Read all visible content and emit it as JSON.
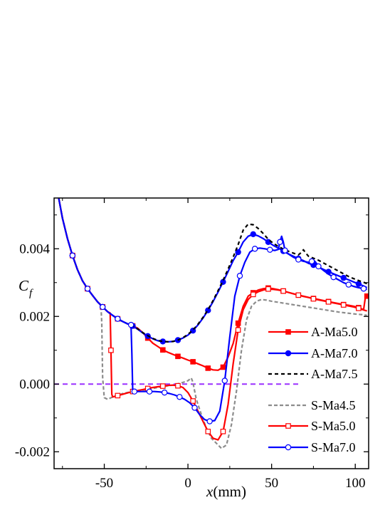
{
  "chart_data": {
    "type": "line",
    "title": "",
    "xlabel_italic": "x",
    "xlabel_unit": "(mm)",
    "ylabel_main": "C",
    "ylabel_sub": "f",
    "xlim": [
      -80,
      108
    ],
    "ylim": [
      -0.0025,
      0.0055
    ],
    "xticks": [
      -50,
      0,
      50,
      100
    ],
    "xtick_labels": [
      "-50",
      "0",
      "50",
      "100"
    ],
    "yticks": [
      -0.002,
      0.0,
      0.002,
      0.004
    ],
    "ytick_labels": [
      "-0.002",
      "0.000",
      "0.002",
      "0.004"
    ],
    "legend_position": "right",
    "reference_line": {
      "y": 0.0,
      "x_end": 68,
      "color": "#9b30ff",
      "style": "dashed"
    },
    "series": [
      {
        "name": "A-Ma5.0",
        "color": "#ff0000",
        "dash": "",
        "marker": "square",
        "filled": true,
        "width": 2.2,
        "marker_every": 3,
        "x": [
          -78,
          -75,
          -72,
          -69,
          -66,
          -63,
          -60,
          -57,
          -54,
          -51,
          -48,
          -45,
          -42,
          -39,
          -36,
          -33,
          -30,
          -27,
          -24,
          -21,
          -18,
          -15,
          -12,
          -9,
          -6,
          -3,
          0,
          3,
          6,
          9,
          12,
          15,
          18,
          21,
          24,
          27,
          30,
          33,
          36,
          39,
          42,
          45,
          48,
          51,
          54,
          57,
          60,
          63,
          66,
          69,
          72,
          75,
          78,
          81,
          84,
          87,
          90,
          93,
          96,
          99,
          102,
          105,
          106,
          107
        ],
        "y": [
          0.0057,
          0.0049,
          0.0043,
          0.0038,
          0.00338,
          0.00305,
          0.00282,
          0.00262,
          0.00243,
          0.00228,
          0.00214,
          0.00203,
          0.00193,
          0.00185,
          0.00178,
          0.00172,
          0.00165,
          0.00152,
          0.00136,
          0.00121,
          0.00111,
          0.00101,
          0.00094,
          0.00088,
          0.00082,
          0.00077,
          0.00071,
          0.00066,
          0.0006,
          0.00054,
          0.00047,
          0.00042,
          0.00041,
          0.0005,
          0.0008,
          0.0012,
          0.0018,
          0.0023,
          0.0026,
          0.0027,
          0.00278,
          0.00282,
          0.00284,
          0.00282,
          0.00279,
          0.00275,
          0.00271,
          0.00267,
          0.00263,
          0.0026,
          0.00256,
          0.00253,
          0.0025,
          0.00247,
          0.00244,
          0.00241,
          0.00238,
          0.00235,
          0.00233,
          0.0023,
          0.00226,
          0.0022,
          0.00255,
          0.0026
        ]
      },
      {
        "name": "A-Ma7.0",
        "color": "#0000ff",
        "dash": "",
        "marker": "circle",
        "filled": true,
        "width": 2.2,
        "marker_every": 3,
        "x": [
          -78,
          -75,
          -72,
          -69,
          -66,
          -63,
          -60,
          -57,
          -54,
          -51,
          -48,
          -45,
          -42,
          -39,
          -36,
          -33,
          -30,
          -27,
          -24,
          -21,
          -18,
          -15,
          -12,
          -9,
          -6,
          -3,
          0,
          3,
          6,
          9,
          12,
          15,
          18,
          21,
          24,
          27,
          30,
          33,
          36,
          39,
          42,
          45,
          48,
          51,
          54,
          57,
          60,
          63,
          66,
          69,
          72,
          75,
          78,
          81,
          84,
          87,
          90,
          93,
          96,
          99,
          102,
          105,
          107
        ],
        "y": [
          0.0057,
          0.0049,
          0.0043,
          0.0038,
          0.00338,
          0.00305,
          0.00282,
          0.00262,
          0.00243,
          0.00228,
          0.00214,
          0.00203,
          0.00193,
          0.00185,
          0.00178,
          0.00172,
          0.00162,
          0.00151,
          0.00142,
          0.00134,
          0.00128,
          0.00126,
          0.00125,
          0.00126,
          0.0013,
          0.00136,
          0.00145,
          0.00158,
          0.00175,
          0.00195,
          0.00218,
          0.00244,
          0.00272,
          0.00302,
          0.00333,
          0.00365,
          0.0039,
          0.0042,
          0.00437,
          0.00443,
          0.00438,
          0.0043,
          0.0042,
          0.0041,
          0.00402,
          0.00393,
          0.00385,
          0.00378,
          0.00371,
          0.00365,
          0.00357,
          0.00352,
          0.00346,
          0.00339,
          0.00332,
          0.00326,
          0.0032,
          0.00314,
          0.00308,
          0.00302,
          0.00296,
          0.0029,
          0.00285
        ]
      },
      {
        "name": "A-Ma7.5",
        "color": "#000000",
        "dash": "5,4",
        "marker": "none",
        "filled": false,
        "width": 2.2,
        "marker_every": 0,
        "x": [
          -78,
          -75,
          -72,
          -69,
          -66,
          -63,
          -60,
          -57,
          -54,
          -51,
          -48,
          -45,
          -42,
          -39,
          -36,
          -33,
          -30,
          -27,
          -24,
          -21,
          -18,
          -15,
          -12,
          -9,
          -6,
          -3,
          0,
          3,
          6,
          9,
          12,
          15,
          18,
          21,
          24,
          27,
          30,
          33,
          36,
          39,
          42,
          45,
          48,
          51,
          54,
          57,
          60,
          63,
          66,
          68,
          69,
          70,
          72,
          75,
          78,
          81,
          84,
          87,
          90,
          93,
          96,
          99,
          102,
          105,
          107
        ],
        "y": [
          0.0057,
          0.0049,
          0.0043,
          0.0038,
          0.00338,
          0.00305,
          0.00282,
          0.00262,
          0.00243,
          0.00228,
          0.00214,
          0.00203,
          0.00193,
          0.00185,
          0.00178,
          0.00172,
          0.00163,
          0.00152,
          0.00143,
          0.00135,
          0.00129,
          0.00126,
          0.00125,
          0.00126,
          0.0013,
          0.00137,
          0.00147,
          0.0016,
          0.00177,
          0.00197,
          0.0022,
          0.00247,
          0.00276,
          0.00307,
          0.0034,
          0.00375,
          0.00412,
          0.00455,
          0.00473,
          0.00471,
          0.0046,
          0.00445,
          0.00428,
          0.00416,
          0.00407,
          0.00399,
          0.00393,
          0.00387,
          0.00382,
          0.0039,
          0.00397,
          0.0039,
          0.00378,
          0.00372,
          0.00366,
          0.00358,
          0.0035,
          0.00342,
          0.00334,
          0.00326,
          0.00318,
          0.00312,
          0.00306,
          0.00301,
          0.00297
        ]
      },
      {
        "name": "S-Ma4.5",
        "color": "#8c8c8c",
        "dash": "5,3",
        "marker": "none",
        "filled": false,
        "width": 2.2,
        "marker_every": 0,
        "x": [
          -78,
          -75,
          -72,
          -69,
          -66,
          -63,
          -60,
          -57,
          -54,
          -52,
          -51.5,
          -51,
          -50,
          -48,
          -45,
          -42,
          -39,
          -36,
          -33,
          -30,
          -27,
          -24,
          -21,
          -18,
          -15,
          -12,
          -9,
          -6,
          -3,
          0,
          2,
          3,
          5,
          8,
          11,
          14,
          17,
          20,
          23,
          26,
          29,
          32,
          35,
          38,
          41,
          44,
          47,
          50,
          55,
          60,
          65,
          70,
          75,
          80,
          85,
          90,
          95,
          100,
          105,
          107
        ],
        "y": [
          0.0057,
          0.0049,
          0.0043,
          0.0038,
          0.00338,
          0.00305,
          0.00282,
          0.00262,
          0.00243,
          0.00234,
          0.0018,
          0.0002,
          -0.0004,
          -0.00045,
          -0.00038,
          -0.00033,
          -0.00028,
          -0.00025,
          -0.00022,
          -0.0002,
          -0.00018,
          -0.00016,
          -0.00013,
          -0.0001,
          -8e-05,
          -5e-05,
          -3e-05,
          1e-05,
          5e-05,
          0.0001,
          0.00018,
          5e-05,
          -0.00045,
          -0.0009,
          -0.0013,
          -0.0016,
          -0.00175,
          -0.0019,
          -0.0018,
          -0.0012,
          -0.0002,
          0.001,
          0.0019,
          0.0023,
          0.00245,
          0.0025,
          0.00248,
          0.00245,
          0.00241,
          0.00237,
          0.00233,
          0.00229,
          0.00225,
          0.00221,
          0.00217,
          0.00213,
          0.0021,
          0.00207,
          0.00205,
          0.00203
        ]
      },
      {
        "name": "S-Ma5.0",
        "color": "#ff0000",
        "dash": "",
        "marker": "square",
        "filled": false,
        "width": 2.2,
        "marker_every": 3,
        "x": [
          -78,
          -75,
          -72,
          -69,
          -66,
          -63,
          -60,
          -57,
          -54,
          -51,
          -48,
          -46.5,
          -46,
          -45.5,
          -45,
          -42,
          -39,
          -36,
          -33,
          -30,
          -27,
          -24,
          -21,
          -18,
          -15,
          -12,
          -9,
          -6,
          -3,
          0,
          3,
          6,
          9,
          12,
          15,
          18,
          21,
          24,
          27,
          30,
          33,
          36,
          39,
          42,
          45,
          48,
          51,
          54,
          57,
          60,
          63,
          66,
          69,
          72,
          75,
          78,
          81,
          84,
          87,
          90,
          93,
          96,
          99,
          102,
          105,
          107
        ],
        "y": [
          0.0057,
          0.0049,
          0.0043,
          0.0038,
          0.00338,
          0.00305,
          0.00282,
          0.00262,
          0.00243,
          0.00228,
          0.00214,
          0.0021,
          0.001,
          -0.0003,
          -0.00038,
          -0.00034,
          -0.0003,
          -0.00026,
          -0.00022,
          -0.00019,
          -0.00016,
          -0.00013,
          -0.0001,
          -8e-05,
          -6e-05,
          -4e-05,
          -3e-05,
          -5e-05,
          -0.0001,
          -0.00025,
          -0.0005,
          -0.0008,
          -0.0011,
          -0.0014,
          -0.0016,
          -0.00165,
          -0.0014,
          -0.0006,
          0.0006,
          0.0016,
          0.0022,
          0.0025,
          0.00265,
          0.00273,
          0.00278,
          0.00281,
          0.0028,
          0.00278,
          0.00275,
          0.00271,
          0.00267,
          0.00263,
          0.00259,
          0.00256,
          0.00252,
          0.00249,
          0.00246,
          0.00243,
          0.0024,
          0.00237,
          0.00234,
          0.00231,
          0.00228,
          0.00224,
          0.00219,
          0.00216
        ]
      },
      {
        "name": "S-Ma7.0",
        "color": "#0000ff",
        "dash": "",
        "marker": "circle",
        "filled": false,
        "width": 2.2,
        "marker_every": 3,
        "x": [
          -78,
          -75,
          -72,
          -69,
          -66,
          -63,
          -60,
          -57,
          -54,
          -51,
          -48,
          -45,
          -42,
          -39,
          -36,
          -34,
          -33.5,
          -33,
          -32,
          -29,
          -26,
          -23,
          -20,
          -17,
          -14,
          -11,
          -8,
          -5,
          -2,
          1,
          4,
          7,
          10,
          13,
          16,
          19,
          22,
          25,
          28,
          31,
          34,
          37,
          40,
          43,
          46,
          49,
          52,
          54,
          55,
          56,
          57,
          58,
          60,
          63,
          66,
          69,
          72,
          74,
          75,
          76,
          78,
          81,
          84,
          87,
          90,
          93,
          96,
          99,
          102,
          105,
          107
        ],
        "y": [
          0.0057,
          0.0049,
          0.0043,
          0.0038,
          0.00338,
          0.00305,
          0.00282,
          0.00262,
          0.00243,
          0.00228,
          0.00214,
          0.00203,
          0.00193,
          0.00185,
          0.00178,
          0.00175,
          0.0009,
          -0.0002,
          -0.00022,
          -0.00022,
          -0.00022,
          -0.00022,
          -0.00022,
          -0.00023,
          -0.00025,
          -0.00028,
          -0.00032,
          -0.00038,
          -0.00045,
          -0.00055,
          -0.0007,
          -0.0009,
          -0.00105,
          -0.0011,
          -0.00108,
          -0.0008,
          0.0001,
          0.0014,
          0.0026,
          0.0032,
          0.0036,
          0.0039,
          0.004,
          0.00402,
          0.004,
          0.00397,
          0.00395,
          0.00398,
          0.0042,
          0.00437,
          0.0042,
          0.00395,
          0.00385,
          0.00375,
          0.00368,
          0.00363,
          0.0036,
          0.00363,
          0.00366,
          0.00362,
          0.00348,
          0.00336,
          0.00325,
          0.00316,
          0.00308,
          0.003,
          0.00294,
          0.00289,
          0.00285,
          0.00282,
          0.0028
        ]
      }
    ]
  }
}
